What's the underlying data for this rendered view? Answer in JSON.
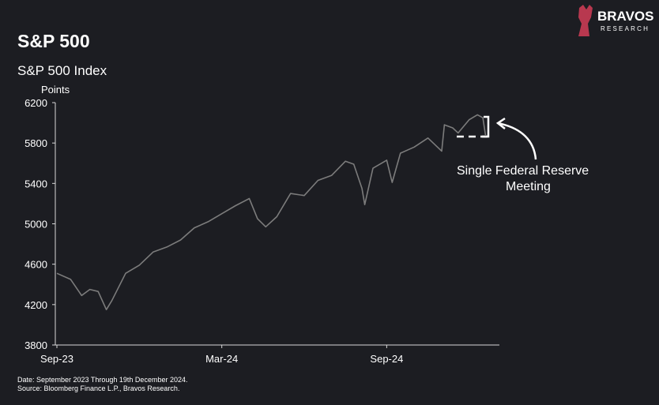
{
  "brand": {
    "name": "BRAVOS",
    "tagline": "RESEARCH"
  },
  "chart_data": {
    "type": "line",
    "title": "S&P 500",
    "subtitle": "S&P 500 Index",
    "y_label": "Points",
    "annotation": [
      "Single Federal Reserve",
      "Meeting"
    ],
    "footnotes": [
      "Date: September 2023 Through 19th December 2024.",
      "Source: Bloomberg Finance L.P., Bravos Research."
    ],
    "color": "#7c7c7c",
    "x": [
      0,
      0.5,
      0.9,
      1.2,
      1.5,
      1.8,
      2.0,
      2.5,
      3.0,
      3.5,
      4.0,
      4.5,
      5.0,
      5.5,
      6.0,
      6.5,
      7.0,
      7.3,
      7.6,
      8.0,
      8.5,
      9.0,
      9.5,
      10.0,
      10.5,
      10.8,
      11.1,
      11.2,
      11.5,
      12.0,
      12.2,
      12.5,
      13.0,
      13.5,
      14.0,
      14.1,
      14.4,
      14.6,
      15.0,
      15.3,
      15.5,
      15.6
    ],
    "values": [
      4510,
      4450,
      4290,
      4350,
      4330,
      4150,
      4240,
      4510,
      4590,
      4720,
      4770,
      4840,
      4960,
      5020,
      5100,
      5180,
      5250,
      5050,
      4970,
      5070,
      5300,
      5280,
      5430,
      5480,
      5620,
      5590,
      5350,
      5190,
      5550,
      5630,
      5410,
      5700,
      5760,
      5850,
      5720,
      5980,
      5950,
      5900,
      6030,
      6080,
      6050,
      5870
    ],
    "xlim": [
      0,
      16.1
    ],
    "xticks": [
      {
        "value": 0,
        "label": "Sep-23"
      },
      {
        "value": 6,
        "label": "Mar-24"
      },
      {
        "value": 12,
        "label": "Sep-24"
      }
    ],
    "ylim": [
      3800,
      6200
    ],
    "yticks": [
      3800,
      4200,
      4600,
      5000,
      5400,
      5800,
      6200
    ]
  }
}
